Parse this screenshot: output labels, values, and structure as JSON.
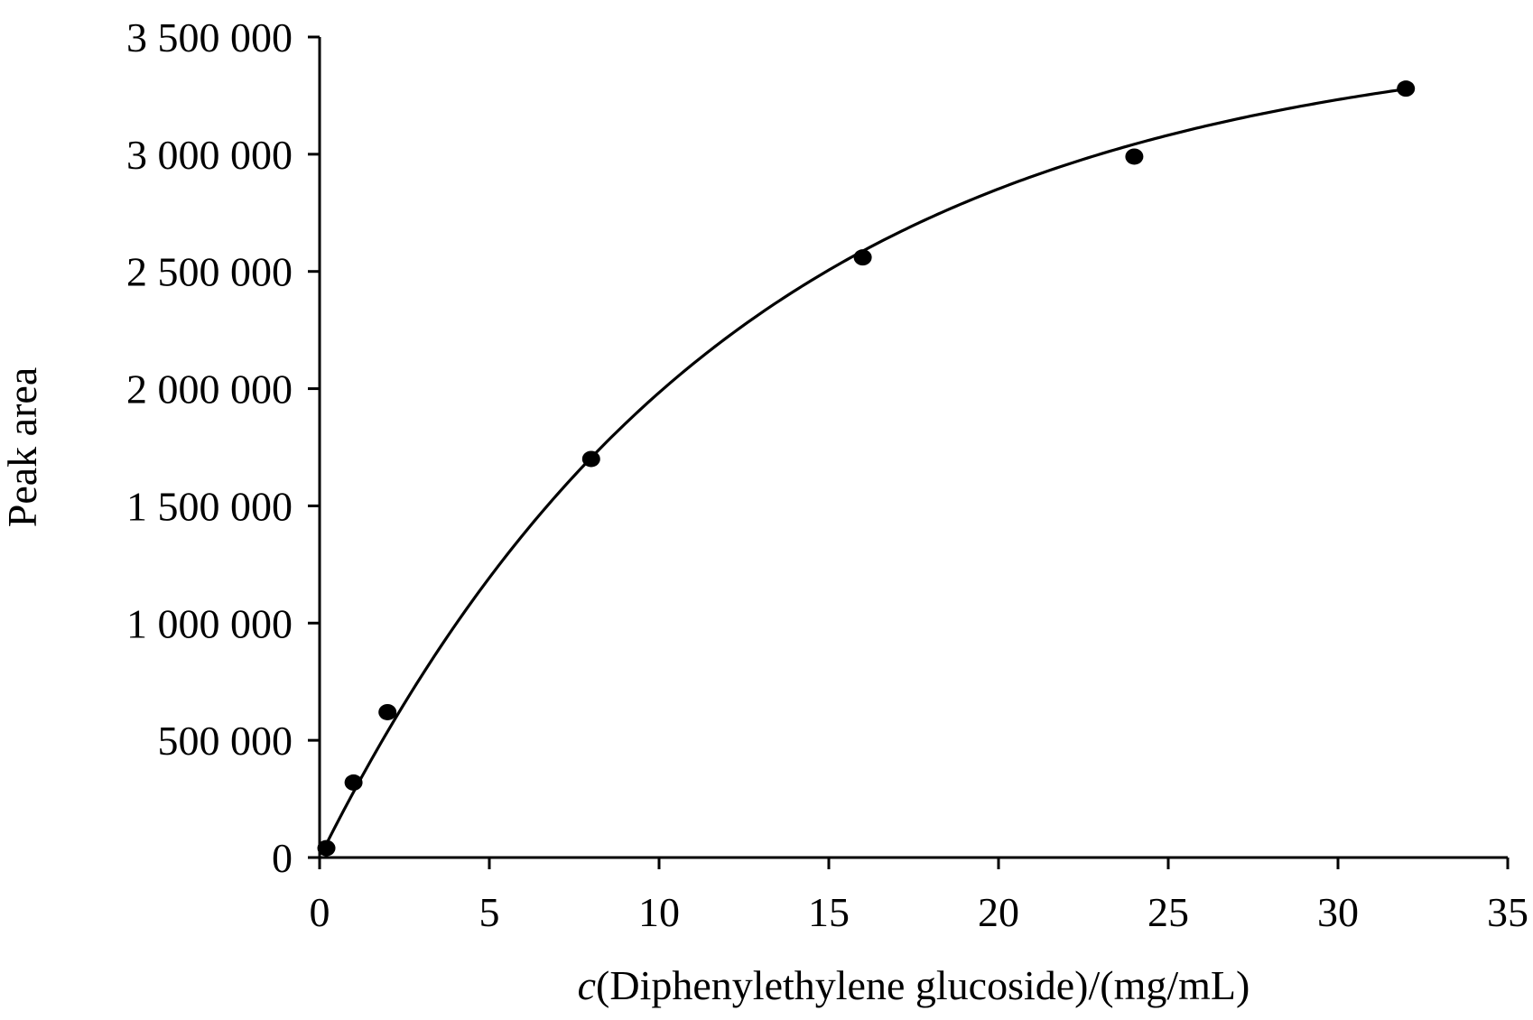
{
  "chart_data": {
    "type": "scatter",
    "xlabel_prefix": "c",
    "xlabel_rest": "(Diphenylethylene glucoside)/(mg/mL)",
    "ylabel": "Peak area",
    "xlim": [
      0,
      35
    ],
    "ylim": [
      0,
      3500000
    ],
    "x_ticks": [
      0,
      5,
      10,
      15,
      20,
      25,
      30,
      35
    ],
    "x_tick_labels": [
      "0",
      "5",
      "10",
      "15",
      "20",
      "25",
      "30",
      "35"
    ],
    "y_ticks": [
      0,
      500000,
      1000000,
      1500000,
      2000000,
      2500000,
      3000000,
      3500000
    ],
    "y_tick_labels": [
      "0",
      "500 000",
      "1 000 000",
      "1 500 000",
      "2 000 000",
      "2 500 000",
      "3 000 000",
      "3 500 000"
    ],
    "grid": false,
    "legend": "none",
    "series": [
      {
        "x": [
          0.2,
          1,
          2,
          8,
          16,
          24,
          32
        ],
        "y": [
          40000,
          320000,
          620000,
          1700000,
          2560000,
          2990000,
          3280000
        ]
      }
    ],
    "fit_curve": {
      "type": "saturating-exponential",
      "a": 3530000,
      "k": 0.0825
    }
  }
}
